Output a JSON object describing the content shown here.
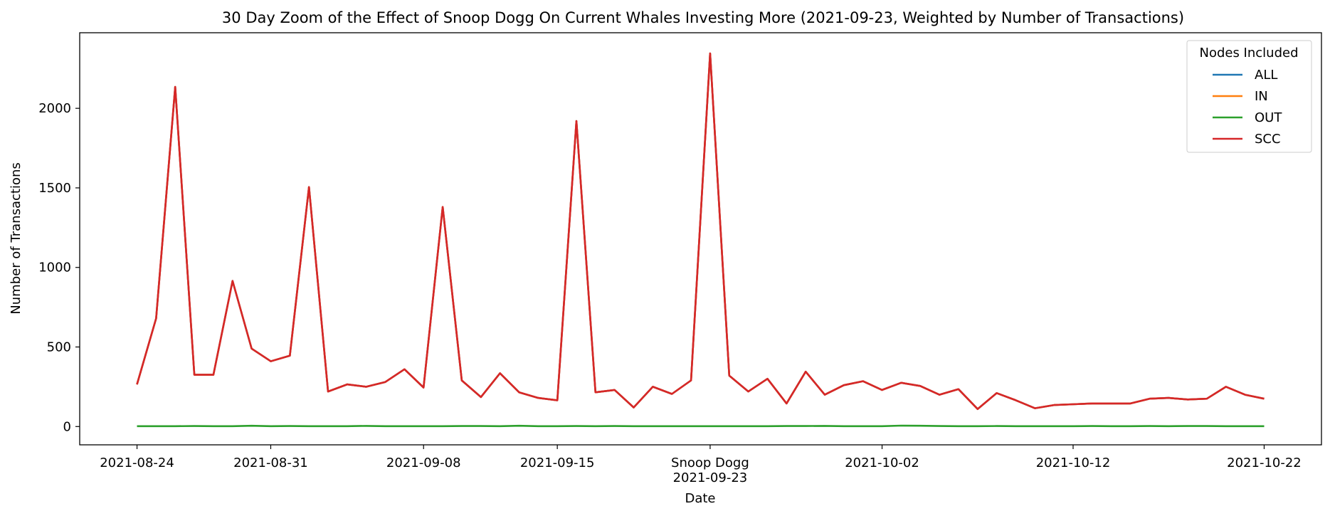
{
  "chart_data": {
    "type": "line",
    "title": "30 Day Zoom of the Effect of Snoop Dogg On Current Whales Investing More (2021-09-23, Weighted by Number of Transactions)",
    "xlabel": "Date",
    "ylabel": "Number of Transactions",
    "x_range": [
      "2021-08-21",
      "2021-10-25"
    ],
    "ylim": [
      -115,
      2475
    ],
    "y_ticks": [
      0,
      500,
      1000,
      1500,
      2000
    ],
    "x_tick_labels": [
      {
        "date": "2021-08-24",
        "label": "2021-08-24"
      },
      {
        "date": "2021-08-31",
        "label": "2021-08-31"
      },
      {
        "date": "2021-09-08",
        "label": "2021-09-08"
      },
      {
        "date": "2021-09-15",
        "label": "2021-09-15"
      },
      {
        "date": "2021-09-23",
        "label": "2021-09-23"
      },
      {
        "date": "2021-10-02",
        "label": "2021-10-02"
      },
      {
        "date": "2021-10-12",
        "label": "2021-10-12"
      },
      {
        "date": "2021-10-22",
        "label": "2021-10-22"
      }
    ],
    "event_marker": {
      "date": "2021-09-23",
      "label": "Snoop Dogg"
    },
    "grid": false,
    "legend": {
      "title": "Nodes Included",
      "placement": "top-right"
    },
    "x": [
      "2021-08-24",
      "2021-08-25",
      "2021-08-26",
      "2021-08-27",
      "2021-08-28",
      "2021-08-29",
      "2021-08-30",
      "2021-08-31",
      "2021-09-01",
      "2021-09-02",
      "2021-09-03",
      "2021-09-04",
      "2021-09-05",
      "2021-09-06",
      "2021-09-07",
      "2021-09-08",
      "2021-09-09",
      "2021-09-10",
      "2021-09-11",
      "2021-09-12",
      "2021-09-13",
      "2021-09-14",
      "2021-09-15",
      "2021-09-16",
      "2021-09-17",
      "2021-09-18",
      "2021-09-19",
      "2021-09-20",
      "2021-09-21",
      "2021-09-22",
      "2021-09-23",
      "2021-09-24",
      "2021-09-25",
      "2021-09-26",
      "2021-09-27",
      "2021-09-28",
      "2021-09-29",
      "2021-09-30",
      "2021-10-01",
      "2021-10-02",
      "2021-10-03",
      "2021-10-04",
      "2021-10-05",
      "2021-10-06",
      "2021-10-07",
      "2021-10-08",
      "2021-10-09",
      "2021-10-10",
      "2021-10-11",
      "2021-10-12",
      "2021-10-13",
      "2021-10-14",
      "2021-10-15",
      "2021-10-16",
      "2021-10-17",
      "2021-10-18",
      "2021-10-19",
      "2021-10-20",
      "2021-10-21",
      "2021-10-22"
    ],
    "series": [
      {
        "name": "ALL",
        "color": "#1f77b4",
        "values": [
          265,
          680,
          2135,
          325,
          325,
          915,
          490,
          410,
          445,
          1505,
          220,
          265,
          250,
          280,
          360,
          245,
          1380,
          290,
          185,
          335,
          215,
          180,
          165,
          1920,
          215,
          230,
          120,
          250,
          205,
          290,
          2345,
          320,
          220,
          300,
          145,
          345,
          200,
          260,
          285,
          230,
          275,
          255,
          200,
          235,
          110,
          210,
          165,
          115,
          135,
          140,
          145,
          145,
          145,
          175,
          180,
          170,
          175,
          250,
          200,
          175
        ]
      },
      {
        "name": "IN",
        "color": "#ff7f0e",
        "values": [
          265,
          680,
          2135,
          325,
          325,
          915,
          490,
          410,
          445,
          1505,
          220,
          265,
          250,
          280,
          360,
          245,
          1380,
          290,
          185,
          335,
          215,
          180,
          165,
          1920,
          215,
          230,
          120,
          250,
          205,
          290,
          2345,
          320,
          220,
          300,
          145,
          345,
          200,
          260,
          285,
          230,
          275,
          255,
          200,
          235,
          110,
          210,
          165,
          115,
          135,
          140,
          145,
          145,
          145,
          175,
          180,
          170,
          175,
          250,
          200,
          175
        ]
      },
      {
        "name": "OUT",
        "color": "#2ca02c",
        "values": [
          2,
          2,
          2,
          3,
          2,
          2,
          5,
          2,
          3,
          2,
          2,
          2,
          4,
          2,
          2,
          2,
          2,
          3,
          3,
          2,
          5,
          2,
          2,
          3,
          2,
          3,
          2,
          2,
          2,
          2,
          2,
          2,
          2,
          2,
          3,
          3,
          4,
          2,
          2,
          2,
          6,
          5,
          3,
          2,
          2,
          3,
          2,
          2,
          2,
          2,
          3,
          2,
          2,
          3,
          2,
          3,
          3,
          2,
          2,
          2
        ]
      },
      {
        "name": "SCC",
        "color": "#d62728",
        "values": [
          265,
          680,
          2135,
          325,
          325,
          915,
          490,
          410,
          445,
          1505,
          220,
          265,
          250,
          280,
          360,
          245,
          1380,
          290,
          185,
          335,
          215,
          180,
          165,
          1920,
          215,
          230,
          120,
          250,
          205,
          290,
          2345,
          320,
          220,
          300,
          145,
          345,
          200,
          260,
          285,
          230,
          275,
          255,
          200,
          235,
          110,
          210,
          165,
          115,
          135,
          140,
          145,
          145,
          145,
          175,
          180,
          170,
          175,
          250,
          200,
          175
        ]
      }
    ]
  }
}
